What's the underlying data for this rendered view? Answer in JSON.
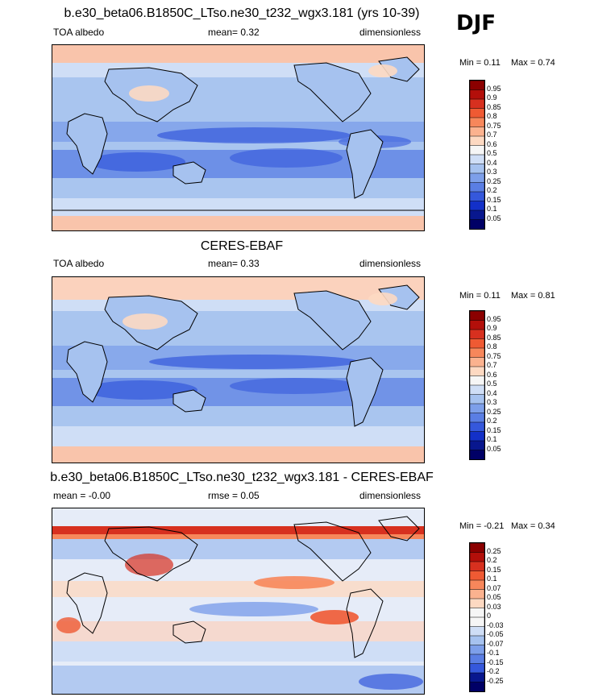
{
  "season": "DJF",
  "panels": [
    {
      "title": "b.e30_beta06.B1850C_LTso.ne30_t232_wgx3.181 (yrs 10-39)",
      "left_text": "TOA albedo",
      "mid_text": "mean=  0.32",
      "right_text": "dimensionless",
      "min_text": "Min =  0.11",
      "max_text": "Max =  0.74",
      "colorbar_labels": [
        "0.95",
        "0.9",
        "0.85",
        "0.8",
        "0.75",
        "0.7",
        "0.6",
        "0.5",
        "0.4",
        "0.3",
        "0.25",
        "0.2",
        "0.15",
        "0.1",
        "0.05"
      ],
      "colorbar_colors": [
        "#8b0000",
        "#b30f0a",
        "#d7301f",
        "#ef5a33",
        "#f7875b",
        "#fbb28f",
        "#fdd9c2",
        "#f6f6f6",
        "#cfdef6",
        "#a6c2ef",
        "#7d9fea",
        "#5a7ee4",
        "#3558dc",
        "#1330c8",
        "#08178e",
        "#000066"
      ]
    },
    {
      "title": "CERES-EBAF",
      "left_text": "TOA albedo",
      "mid_text": "mean=  0.33",
      "right_text": "dimensionless",
      "min_text": "Min =  0.11",
      "max_text": "Max =  0.81",
      "colorbar_labels": [
        "0.95",
        "0.9",
        "0.85",
        "0.8",
        "0.75",
        "0.7",
        "0.6",
        "0.5",
        "0.4",
        "0.3",
        "0.25",
        "0.2",
        "0.15",
        "0.1",
        "0.05"
      ],
      "colorbar_colors": [
        "#8b0000",
        "#b30f0a",
        "#d7301f",
        "#ef5a33",
        "#f7875b",
        "#fbb28f",
        "#fdd9c2",
        "#f6f6f6",
        "#cfdef6",
        "#a6c2ef",
        "#7d9fea",
        "#5a7ee4",
        "#3558dc",
        "#1330c8",
        "#08178e",
        "#000066"
      ]
    },
    {
      "title": "b.e30_beta06.B1850C_LTso.ne30_t232_wgx3.181 - CERES-EBAF",
      "left_text": "mean = -0.00",
      "mid_text": "rmse = 0.05",
      "right_text": "dimensionless",
      "min_text": "Min = -0.21",
      "max_text": "Max =  0.34",
      "colorbar_labels": [
        "0.25",
        "0.2",
        "0.15",
        "0.1",
        "0.07",
        "0.05",
        "0.03",
        "0",
        "-0.03",
        "-0.05",
        "-0.07",
        "-0.1",
        "-0.15",
        "-0.2",
        "-0.25"
      ],
      "colorbar_colors": [
        "#8b0000",
        "#b30f0a",
        "#d7301f",
        "#ef5a33",
        "#f7875b",
        "#fbb28f",
        "#fdd9c2",
        "#f6f6f6",
        "#f6f6f6",
        "#cfdef6",
        "#a6c2ef",
        "#7d9fea",
        "#5a7ee4",
        "#3558dc",
        "#08178e",
        "#000066"
      ]
    }
  ],
  "chart_data": [
    {
      "type": "heatmap",
      "title": "b.e30_beta06.B1850C_LTso.ne30_t232_wgx3.181 (yrs 10-39)",
      "variable": "TOA albedo",
      "units": "dimensionless",
      "mean": 0.32,
      "min": 0.11,
      "max": 0.74,
      "levels": [
        0.05,
        0.1,
        0.15,
        0.2,
        0.25,
        0.3,
        0.4,
        0.5,
        0.6,
        0.7,
        0.75,
        0.8,
        0.85,
        0.9,
        0.95
      ]
    },
    {
      "type": "heatmap",
      "title": "CERES-EBAF",
      "variable": "TOA albedo",
      "units": "dimensionless",
      "mean": 0.33,
      "min": 0.11,
      "max": 0.81,
      "levels": [
        0.05,
        0.1,
        0.15,
        0.2,
        0.25,
        0.3,
        0.4,
        0.5,
        0.6,
        0.7,
        0.75,
        0.8,
        0.85,
        0.9,
        0.95
      ]
    },
    {
      "type": "heatmap",
      "title": "b.e30_beta06.B1850C_LTso.ne30_t232_wgx3.181 - CERES-EBAF",
      "units": "dimensionless",
      "mean": -0.0,
      "rmse": 0.05,
      "min": -0.21,
      "max": 0.34,
      "levels": [
        -0.25,
        -0.2,
        -0.15,
        -0.1,
        -0.07,
        -0.05,
        -0.03,
        0,
        0.03,
        0.05,
        0.07,
        0.1,
        0.15,
        0.2,
        0.25
      ]
    }
  ]
}
